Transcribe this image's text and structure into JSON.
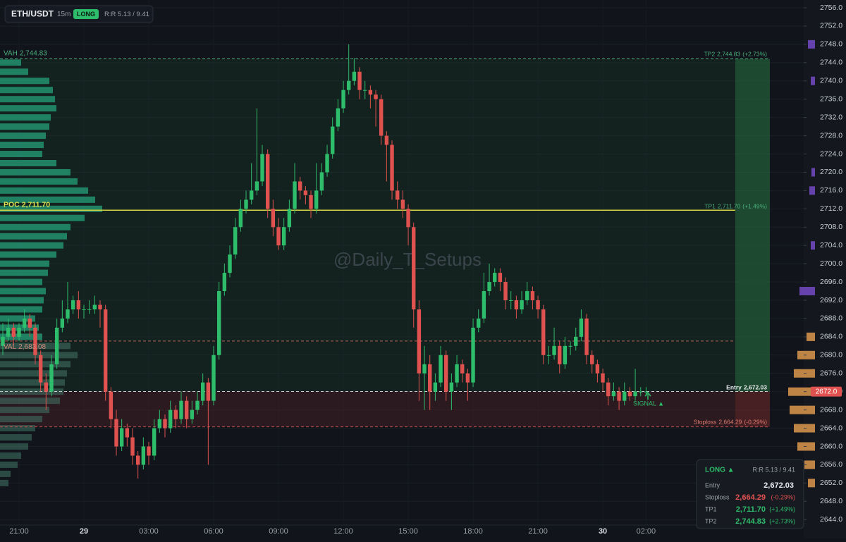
{
  "header": {
    "symbol": "ETH/USDT",
    "timeframe": "15m",
    "side": "LONG",
    "rr": "R:R 5.13 / 9.41",
    "watermark": "@Daily_T_Setups",
    "signal": "SIGNAL ▲"
  },
  "panel": {
    "title": "LONG ▲",
    "rr": "R:R 5.13 / 9.41"
  },
  "chart_data": {
    "type": "candlestick",
    "colors": {
      "up": "#2ebd6b",
      "down": "#e0524f"
    },
    "grid": true,
    "xlim": [
      -3.88,
      33.29
    ],
    "xticks": [
      {
        "value": -3,
        "label": "21:00"
      },
      {
        "value": 0,
        "label": "29"
      },
      {
        "value": 3,
        "label": "03:00"
      },
      {
        "value": 6,
        "label": "06:00"
      },
      {
        "value": 9,
        "label": "09:00"
      },
      {
        "value": 12,
        "label": "12:00"
      },
      {
        "value": 15,
        "label": "15:00"
      },
      {
        "value": 18,
        "label": "18:00"
      },
      {
        "value": 21,
        "label": "21:00"
      },
      {
        "value": 24,
        "label": "30"
      },
      {
        "value": 26,
        "label": "02:00"
      }
    ],
    "ylim": [
      2642.8,
      2757.7
    ],
    "yticks": [
      {
        "value": 2756,
        "label": "2756.0"
      },
      {
        "value": 2752,
        "label": "2752.0"
      },
      {
        "value": 2748,
        "label": "2748.0"
      },
      {
        "value": 2744,
        "label": "2744.0"
      },
      {
        "value": 2740,
        "label": "2740.0"
      },
      {
        "value": 2736,
        "label": "2736.0"
      },
      {
        "value": 2732,
        "label": "2732.0"
      },
      {
        "value": 2728,
        "label": "2728.0"
      },
      {
        "value": 2724,
        "label": "2724.0"
      },
      {
        "value": 2720,
        "label": "2720.0"
      },
      {
        "value": 2716,
        "label": "2716.0"
      },
      {
        "value": 2712,
        "label": "2712.0"
      },
      {
        "value": 2708,
        "label": "2708.0"
      },
      {
        "value": 2704,
        "label": "2704.0"
      },
      {
        "value": 2700,
        "label": "2700.0"
      },
      {
        "value": 2696,
        "label": "2696.0"
      },
      {
        "value": 2692,
        "label": "2692.0"
      },
      {
        "value": 2688,
        "label": "2688.0"
      },
      {
        "value": 2684,
        "label": "2684.0"
      },
      {
        "value": 2680,
        "label": "2680.0"
      },
      {
        "value": 2676,
        "label": "2676.0"
      },
      {
        "value": 2672,
        "label": "2672.0"
      },
      {
        "value": 2668,
        "label": "2668.0"
      },
      {
        "value": 2664,
        "label": "2664.0"
      },
      {
        "value": 2660,
        "label": "2660.0"
      },
      {
        "value": 2656,
        "label": "2656.0"
      },
      {
        "value": 2652,
        "label": "2652.0"
      },
      {
        "value": 2648,
        "label": "2648.0"
      },
      {
        "value": 2644,
        "label": "2644.0"
      }
    ],
    "last_price": {
      "value": 2672.0,
      "label": "2672.0"
    },
    "levels": {
      "vah": {
        "name": "VAH",
        "price": 2744.83,
        "label": "2,744.83"
      },
      "poc": {
        "name": "POC",
        "price": 2711.7,
        "label": "2,711.70"
      },
      "val": {
        "name": "VAL",
        "price": 2683.08,
        "label": "2,683.08"
      },
      "tp2": {
        "name": "TP2",
        "price": 2744.83,
        "label": "2,744.83",
        "change": "(+2.73%)"
      },
      "tp1": {
        "name": "TP1",
        "price": 2711.7,
        "label": "2,711.70",
        "change": "(+1.49%)"
      },
      "entry": {
        "name": "Entry",
        "price": 2672.03,
        "label": "2,672.03"
      },
      "stoploss": {
        "name": "Stoploss",
        "price": 2664.29,
        "label": "2,664.29",
        "change": "(-0.29%)"
      }
    },
    "x": [
      -3.75,
      -3.5,
      -3.25,
      -3,
      -2.75,
      -2.5,
      -2.25,
      -2,
      -1.75,
      -1.5,
      -1.25,
      -1,
      -0.75,
      -0.5,
      -0.25,
      0,
      0.25,
      0.5,
      0.75,
      1,
      1.25,
      1.5,
      1.75,
      2,
      2.25,
      2.5,
      2.75,
      3,
      3.25,
      3.5,
      3.75,
      4,
      4.25,
      4.5,
      4.75,
      5,
      5.25,
      5.5,
      5.75,
      6,
      6.25,
      6.5,
      6.75,
      7,
      7.25,
      7.5,
      7.75,
      8,
      8.25,
      8.5,
      8.75,
      9,
      9.25,
      9.5,
      9.75,
      10,
      10.25,
      10.5,
      10.75,
      11,
      11.25,
      11.5,
      11.75,
      12,
      12.25,
      12.5,
      12.75,
      13,
      13.25,
      13.5,
      13.75,
      14,
      14.25,
      14.5,
      14.75,
      15,
      15.25,
      15.5,
      15.75,
      16,
      16.25,
      16.5,
      16.75,
      17,
      17.25,
      17.5,
      17.75,
      18,
      18.25,
      18.5,
      18.75,
      19,
      19.25,
      19.5,
      19.75,
      20,
      20.25,
      20.5,
      20.75,
      21,
      21.25,
      21.5,
      21.75,
      22,
      22.25,
      22.5,
      22.75,
      23,
      23.25,
      23.5,
      23.75,
      24,
      24.25,
      24.5,
      24.75,
      25,
      25.25,
      25.5,
      25.75,
      26
    ],
    "ohlc": [
      [
        2682,
        2687,
        2680,
        2684
      ],
      [
        2684,
        2688,
        2683,
        2686
      ],
      [
        2686,
        2687,
        2682,
        2684
      ],
      [
        2684,
        2687,
        2683,
        2686
      ],
      [
        2686,
        2690,
        2685,
        2688
      ],
      [
        2688,
        2689,
        2684,
        2686
      ],
      [
        2686,
        2687,
        2678,
        2680
      ],
      [
        2680,
        2681,
        2672,
        2674
      ],
      [
        2674,
        2676,
        2668,
        2672
      ],
      [
        2672,
        2680,
        2671,
        2678
      ],
      [
        2678,
        2688,
        2677,
        2686
      ],
      [
        2686,
        2692,
        2685,
        2688
      ],
      [
        2688,
        2696,
        2687,
        2690
      ],
      [
        2690,
        2693,
        2689,
        2692
      ],
      [
        2692,
        2694,
        2688,
        2690
      ],
      [
        2690,
        2691,
        2688,
        2690
      ],
      [
        2690,
        2692,
        2689,
        2690
      ],
      [
        2690,
        2693,
        2689,
        2691
      ],
      [
        2691,
        2692,
        2686,
        2690
      ],
      [
        2690,
        2691,
        2670,
        2672
      ],
      [
        2672,
        2673,
        2664,
        2666
      ],
      [
        2666,
        2668,
        2658,
        2660
      ],
      [
        2660,
        2666,
        2659,
        2664
      ],
      [
        2664,
        2665,
        2660,
        2662
      ],
      [
        2662,
        2664,
        2656,
        2658
      ],
      [
        2658,
        2659,
        2653,
        2656
      ],
      [
        2656,
        2662,
        2655,
        2660
      ],
      [
        2660,
        2661,
        2656,
        2658
      ],
      [
        2658,
        2666,
        2657,
        2664
      ],
      [
        2664,
        2668,
        2663,
        2666
      ],
      [
        2666,
        2667,
        2662,
        2664
      ],
      [
        2664,
        2670,
        2663,
        2668
      ],
      [
        2668,
        2669,
        2664,
        2666
      ],
      [
        2666,
        2672,
        2665,
        2670
      ],
      [
        2670,
        2671,
        2664,
        2666
      ],
      [
        2666,
        2670,
        2665,
        2668
      ],
      [
        2668,
        2672,
        2667,
        2670
      ],
      [
        2670,
        2676,
        2669,
        2674
      ],
      [
        2674,
        2675,
        2656,
        2670
      ],
      [
        2670,
        2682,
        2669,
        2680
      ],
      [
        2680,
        2696,
        2679,
        2694
      ],
      [
        2694,
        2700,
        2693,
        2698
      ],
      [
        2698,
        2704,
        2697,
        2702
      ],
      [
        2702,
        2710,
        2701,
        2708
      ],
      [
        2708,
        2714,
        2707,
        2712
      ],
      [
        2712,
        2716,
        2711,
        2714
      ],
      [
        2714,
        2722,
        2713,
        2716
      ],
      [
        2716,
        2734,
        2715,
        2718
      ],
      [
        2718,
        2726,
        2717,
        2724
      ],
      [
        2724,
        2725,
        2710,
        2712
      ],
      [
        2712,
        2714,
        2706,
        2708
      ],
      [
        2708,
        2710,
        2703,
        2704
      ],
      [
        2704,
        2710,
        2703,
        2708
      ],
      [
        2708,
        2714,
        2707,
        2712
      ],
      [
        2712,
        2722,
        2711,
        2718
      ],
      [
        2718,
        2719,
        2714,
        2716
      ],
      [
        2716,
        2717,
        2713,
        2715
      ],
      [
        2715,
        2716,
        2710,
        2712
      ],
      [
        2712,
        2722,
        2711,
        2716
      ],
      [
        2716,
        2722,
        2715,
        2720
      ],
      [
        2720,
        2726,
        2719,
        2724
      ],
      [
        2724,
        2732,
        2723,
        2730
      ],
      [
        2730,
        2736,
        2729,
        2734
      ],
      [
        2734,
        2740,
        2733,
        2738
      ],
      [
        2738,
        2748,
        2737,
        2740
      ],
      [
        2740,
        2745,
        2739,
        2742
      ],
      [
        2742,
        2743,
        2736,
        2738
      ],
      [
        2738,
        2740,
        2736,
        2738
      ],
      [
        2738,
        2739,
        2734,
        2737
      ],
      [
        2737,
        2738,
        2730,
        2736
      ],
      [
        2736,
        2737,
        2726,
        2728
      ],
      [
        2728,
        2729,
        2718,
        2726
      ],
      [
        2726,
        2727,
        2714,
        2716
      ],
      [
        2716,
        2718,
        2712,
        2714
      ],
      [
        2714,
        2716,
        2710,
        2712
      ],
      [
        2712,
        2713,
        2704,
        2708
      ],
      [
        2708,
        2709,
        2686,
        2690
      ],
      [
        2690,
        2692,
        2670,
        2676
      ],
      [
        2676,
        2682,
        2668,
        2678
      ],
      [
        2678,
        2680,
        2668,
        2672
      ],
      [
        2672,
        2676,
        2670,
        2674
      ],
      [
        2674,
        2682,
        2673,
        2680
      ],
      [
        2680,
        2681,
        2670,
        2672
      ],
      [
        2672,
        2676,
        2668,
        2674
      ],
      [
        2674,
        2680,
        2673,
        2678
      ],
      [
        2678,
        2679,
        2674,
        2676
      ],
      [
        2676,
        2677,
        2670,
        2674
      ],
      [
        2674,
        2688,
        2673,
        2686
      ],
      [
        2686,
        2690,
        2685,
        2688
      ],
      [
        2688,
        2698,
        2687,
        2694
      ],
      [
        2694,
        2700,
        2693,
        2696
      ],
      [
        2696,
        2699,
        2695,
        2698
      ],
      [
        2698,
        2699,
        2694,
        2696
      ],
      [
        2696,
        2697,
        2690,
        2692
      ],
      [
        2692,
        2694,
        2690,
        2692
      ],
      [
        2692,
        2693,
        2688,
        2690
      ],
      [
        2690,
        2694,
        2689,
        2692
      ],
      [
        2692,
        2696,
        2691,
        2694
      ],
      [
        2694,
        2695,
        2690,
        2692
      ],
      [
        2692,
        2693,
        2688,
        2690
      ],
      [
        2690,
        2691,
        2678,
        2680
      ],
      [
        2680,
        2682,
        2678,
        2680
      ],
      [
        2680,
        2686,
        2679,
        2682
      ],
      [
        2682,
        2683,
        2676,
        2678
      ],
      [
        2678,
        2684,
        2677,
        2682
      ],
      [
        2682,
        2683,
        2680,
        2682
      ],
      [
        2682,
        2686,
        2681,
        2684
      ],
      [
        2684,
        2690,
        2683,
        2688
      ],
      [
        2688,
        2689,
        2678,
        2680
      ],
      [
        2680,
        2681,
        2676,
        2678
      ],
      [
        2678,
        2679,
        2674,
        2676
      ],
      [
        2676,
        2677,
        2672,
        2674
      ],
      [
        2674,
        2675,
        2669,
        2671
      ],
      [
        2671,
        2674,
        2670,
        2672
      ],
      [
        2672,
        2673,
        2668,
        2670
      ],
      [
        2670,
        2674,
        2669,
        2672
      ],
      [
        2672,
        2673,
        2670,
        2671
      ],
      [
        2671,
        2677,
        2670,
        2672
      ],
      [
        2672,
        2673,
        2671,
        2672
      ],
      [
        2672,
        2673,
        2671,
        2672
      ]
    ],
    "volume_profile": {
      "color": "#26a07a",
      "outside_color": "#3f6e60",
      "prices": [
        2652,
        2654,
        2656,
        2658,
        2660,
        2662,
        2664,
        2666,
        2668,
        2670,
        2672,
        2674,
        2676,
        2678,
        2680,
        2682,
        2684,
        2686,
        2688,
        2690,
        2692,
        2694,
        2696,
        2698,
        2700,
        2702,
        2704,
        2706,
        2708,
        2710,
        2712,
        2714,
        2716,
        2718,
        2720,
        2722,
        2724,
        2726,
        2728,
        2730,
        2732,
        2734,
        2736,
        2738,
        2740,
        2742,
        2744
      ],
      "values": [
        12,
        15,
        25,
        30,
        40,
        45,
        50,
        60,
        70,
        85,
        90,
        92,
        95,
        100,
        110,
        100,
        60,
        55,
        50,
        60,
        62,
        65,
        60,
        68,
        70,
        80,
        90,
        95,
        100,
        120,
        145,
        135,
        125,
        110,
        100,
        80,
        60,
        62,
        65,
        70,
        72,
        80,
        78,
        75,
        70,
        40,
        30
      ]
    },
    "liquidity": {
      "color": "#e8a050",
      "upper_color": "#7a4fd0",
      "prices": [
        2748,
        2740,
        2720,
        2716,
        2704,
        2694,
        2684,
        2680,
        2676,
        2672,
        2668,
        2664,
        2660,
        2656,
        2652
      ],
      "values": [
        10,
        6,
        5,
        8,
        6,
        22,
        12,
        25,
        30,
        38,
        36,
        30,
        25,
        15,
        10
      ]
    }
  }
}
